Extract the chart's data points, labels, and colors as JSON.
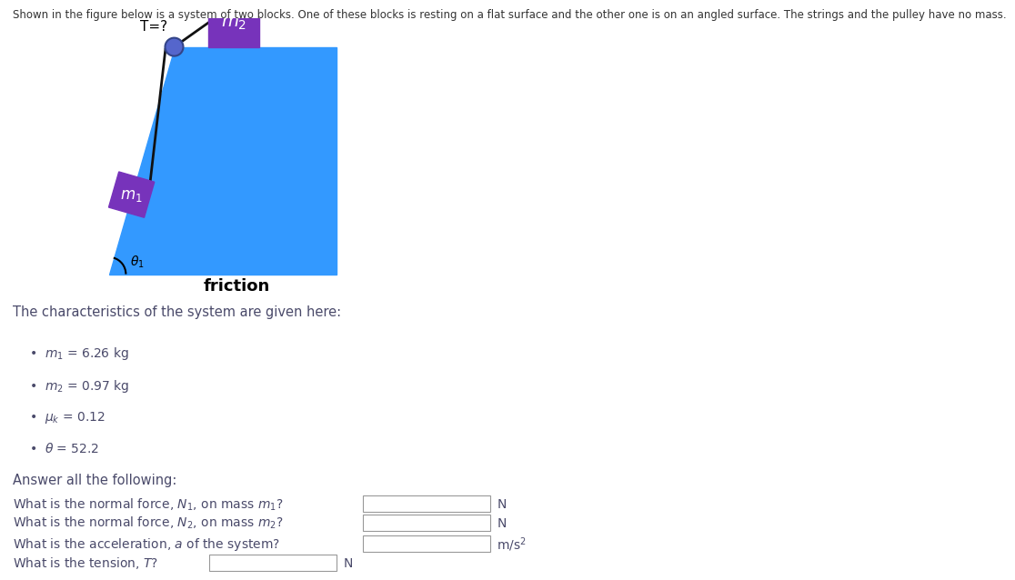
{
  "title_text": "Shown in the figure below is a system of two blocks. One of these blocks is resting on a flat surface and the other one is on an angled surface. The strings and the pulley have no mass.",
  "fig_bg": "#ffffff",
  "text_color": "#4a4a6a",
  "blue_color": "#3399ff",
  "purple_color": "#7733bb",
  "pulley_color": "#5566cc",
  "rope_color": "#111111",
  "m1_label": "$m_1$",
  "m2_label": "$m_2$",
  "theta_label": "$\\theta_1$",
  "T_label": "T=?",
  "friction_label": "friction",
  "chars_intro": "The characteristics of the system are given here:",
  "bullet1": "$m_1$ = 6.26 kg",
  "bullet2": "$m_2$ = 0.97 kg",
  "bullet3": "$\\mu_k$ = 0.12",
  "bullet4": "$\\theta$ = 52.2",
  "answer_intro": "Answer all the following:",
  "q1": "What is the normal force, $N_1$, on mass $m_1$?",
  "q2": "What is the normal force, $N_2$, on mass $m_2$?",
  "q3": "What is the acceleration, $a$ of the system?",
  "q4": "What is the tension, $T$?",
  "unit1": "N",
  "unit2": "N",
  "unit3": "m/s$^2$",
  "unit4": "N"
}
